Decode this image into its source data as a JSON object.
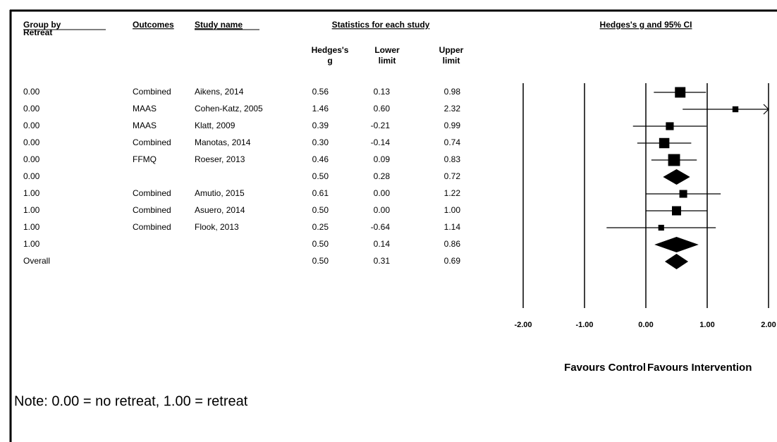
{
  "headers": {
    "group": [
      "Group by",
      "Retreat"
    ],
    "outcomes": "Outcomes",
    "study": "Study name",
    "stats": "Statistics for each study",
    "g": [
      "Hedges's",
      "g"
    ],
    "lower": [
      "Lower",
      "limit"
    ],
    "upper": [
      "Upper",
      "limit"
    ],
    "plot": "Hedges's g and 95% CI"
  },
  "rows": [
    {
      "group": "0.00",
      "outcome": "Combined",
      "study": "Aikens, 2014",
      "g": 0.56,
      "lower": 0.13,
      "upper": 0.98,
      "value_labels": [
        "0.56",
        "0.13",
        "0.98"
      ]
    },
    {
      "group": "0.00",
      "outcome": "MAAS",
      "study": "Cohen-Katz, 2005",
      "g": 1.46,
      "lower": 0.6,
      "upper": 2.32,
      "value_labels": [
        "1.46",
        "0.60",
        "2.32"
      ]
    },
    {
      "group": "0.00",
      "outcome": "MAAS",
      "study": "Klatt, 2009",
      "g": 0.39,
      "lower": -0.21,
      "upper": 0.99,
      "value_labels": [
        "0.39",
        "-0.21",
        "0.99"
      ]
    },
    {
      "group": "0.00",
      "outcome": "Combined",
      "study": "Manotas, 2014",
      "g": 0.3,
      "lower": -0.14,
      "upper": 0.74,
      "value_labels": [
        "0.30",
        "-0.14",
        "0.74"
      ]
    },
    {
      "group": "0.00",
      "outcome": "FFMQ",
      "study": "Roeser, 2013",
      "g": 0.46,
      "lower": 0.09,
      "upper": 0.83,
      "value_labels": [
        "0.46",
        "0.09",
        "0.83"
      ]
    },
    {
      "group": "0.00",
      "outcome": null,
      "study": null,
      "g": 0.5,
      "lower": 0.28,
      "upper": 0.72,
      "value_labels": [
        "0.50",
        "0.28",
        "0.72"
      ]
    },
    {
      "group": "1.00",
      "outcome": "Combined",
      "study": "Amutio, 2015",
      "g": 0.61,
      "lower": 0,
      "upper": 1.22,
      "value_labels": [
        "0.61",
        "0.00",
        "1.22"
      ]
    },
    {
      "group": "1.00",
      "outcome": "Combined",
      "study": "Asuero, 2014",
      "g": 0.5,
      "lower": 0,
      "upper": 1,
      "value_labels": [
        "0.50",
        "0.00",
        "1.00"
      ]
    },
    {
      "group": "1.00",
      "outcome": "Combined",
      "study": "Flook, 2013",
      "g": 0.25,
      "lower": -0.64,
      "upper": 1.14,
      "value_labels": [
        "0.25",
        "-0.64",
        "1.14"
      ]
    },
    {
      "group": "1.00",
      "outcome": null,
      "study": null,
      "g": 0.5,
      "lower": 0.14,
      "upper": 0.86,
      "value_labels": [
        "0.50",
        "0.14",
        "0.86"
      ]
    },
    {
      "group": "Overall",
      "outcome": null,
      "study": null,
      "g": 0.5,
      "lower": 0.31,
      "upper": 0.69,
      "value_labels": [
        "0.50",
        "0.31",
        "0.69"
      ]
    }
  ],
  "xlim": [
    -2,
    2
  ],
  "xticks": [
    {
      "value": -2,
      "label": "-2.00"
    },
    {
      "value": -1,
      "label": "-1.00"
    },
    {
      "value": 0,
      "label": "0.00"
    },
    {
      "value": 1,
      "label": "1.00"
    },
    {
      "value": 2,
      "label": "2.00"
    }
  ],
  "favours": [
    "Favours Control",
    "Favours Intervention"
  ],
  "note": "Note: 0.00 = no retreat, 1.00 = retreat"
}
